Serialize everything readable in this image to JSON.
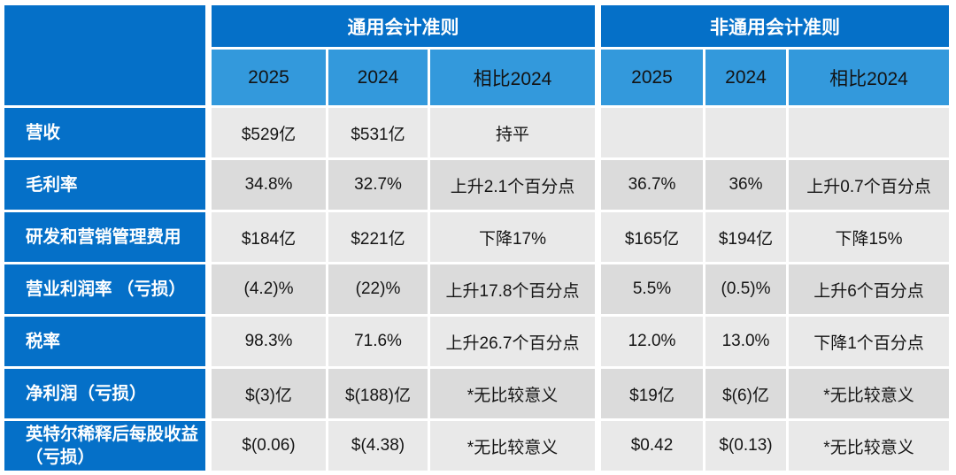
{
  "colors": {
    "header_blue": "#0570C8",
    "subheader_blue": "#3399DC",
    "row_gray_light": "#E9E9E9",
    "row_gray_dark": "#DBDBDB",
    "label_text": "#FFFFFF",
    "value_text": "#151515"
  },
  "chart_data": {
    "type": "table",
    "title": "",
    "groups": [
      {
        "label": "通用会计准则",
        "subcolumns": [
          "2025",
          "2024",
          "相比2024"
        ]
      },
      {
        "label": "非通用会计准则",
        "subcolumns": [
          "2025",
          "2024",
          "相比2024"
        ]
      }
    ],
    "rows": [
      {
        "label": "营收",
        "values": [
          "$529亿",
          "$531亿",
          "持平",
          "",
          "",
          ""
        ]
      },
      {
        "label": "毛利率",
        "values": [
          "34.8%",
          "32.7%",
          "上升2.1个百分点",
          "36.7%",
          "36%",
          "上升0.7个百分点"
        ]
      },
      {
        "label": "研发和营销管理费用",
        "values": [
          "$184亿",
          "$221亿",
          "下降17%",
          "$165亿",
          "$194亿",
          "下降15%"
        ]
      },
      {
        "label": "营业利润率 （亏损）",
        "values": [
          "(4.2)%",
          "(22)%",
          "上升17.8个百分点",
          "5.5%",
          "(0.5)%",
          "上升6个百分点"
        ]
      },
      {
        "label": "税率",
        "values": [
          "98.3%",
          "71.6%",
          "上升26.7个百分点",
          "12.0%",
          "13.0%",
          "下降1个百分点"
        ]
      },
      {
        "label": "净利润（亏损）",
        "values": [
          "$(3)亿",
          "$(188)亿",
          "*无比较意义",
          "$19亿",
          "$(6)亿",
          "*无比较意义"
        ]
      },
      {
        "label": "英特尔稀释后每股收益（亏损）",
        "values": [
          "$(0.06)",
          "$(4.38)",
          "*无比较意义",
          "$0.42",
          "$(0.13)",
          "*无比较意义"
        ]
      }
    ]
  }
}
